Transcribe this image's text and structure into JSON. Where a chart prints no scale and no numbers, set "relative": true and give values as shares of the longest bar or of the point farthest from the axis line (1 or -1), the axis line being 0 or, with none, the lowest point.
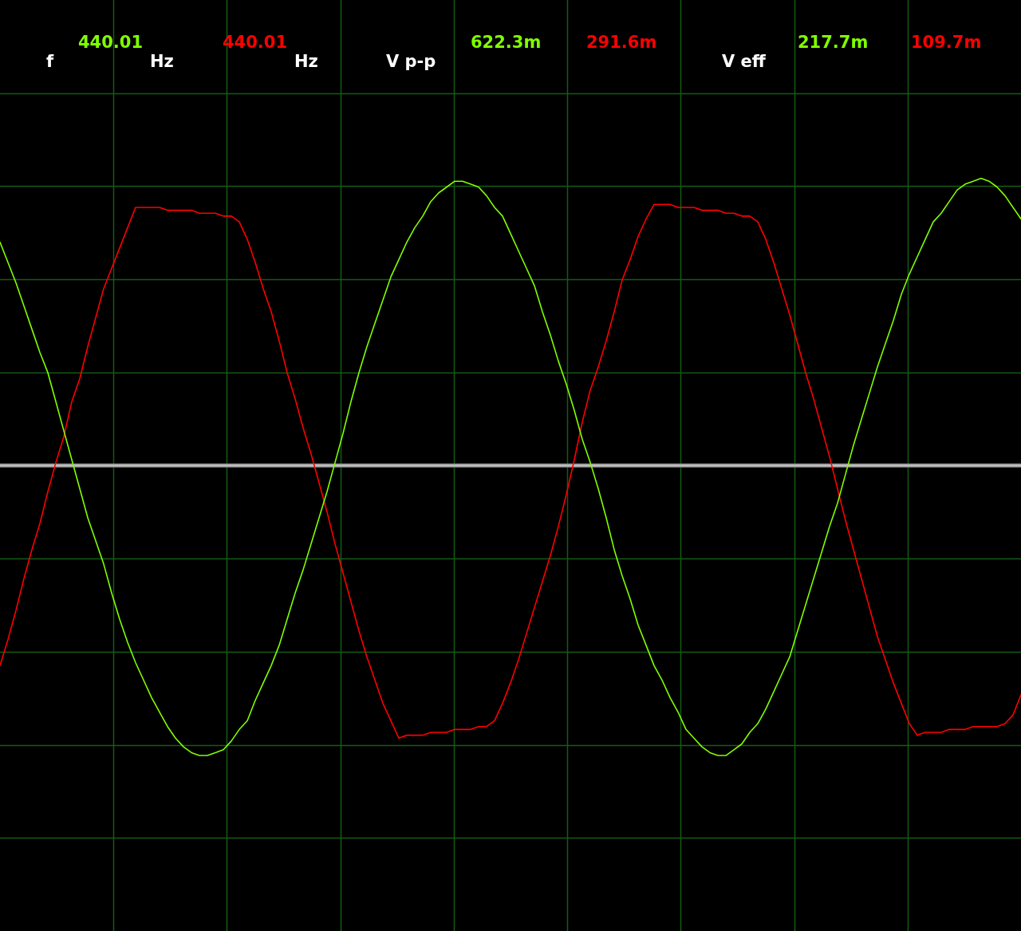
{
  "chart_data": {
    "type": "line",
    "relative": true,
    "categories": [
      null,
      null,
      null,
      null,
      null,
      null,
      null,
      null,
      null,
      null,
      null,
      null,
      null,
      null,
      null,
      null,
      null,
      null,
      null,
      null,
      null,
      null,
      null,
      null,
      null,
      null,
      null,
      null,
      null,
      null,
      null,
      null,
      null,
      null,
      null,
      null,
      null,
      null,
      null,
      null,
      null,
      null,
      null,
      null,
      null,
      null,
      null,
      null,
      null,
      null,
      null,
      null,
      null,
      null,
      null,
      null,
      null,
      null,
      null,
      null,
      null,
      null,
      null,
      null,
      null,
      null,
      null,
      null,
      null,
      null,
      null,
      null,
      null,
      null,
      null,
      null,
      null,
      null,
      null,
      null,
      null,
      null,
      null,
      null,
      null,
      null,
      null,
      null,
      null,
      null,
      null,
      null,
      null,
      null,
      null,
      null,
      null,
      null,
      null,
      null,
      null,
      null,
      null,
      null,
      null,
      null,
      null,
      null,
      null,
      null,
      null,
      null,
      null,
      null,
      null,
      null,
      null,
      null,
      null,
      null,
      null,
      null,
      null,
      null,
      null,
      null,
      null,
      null,
      null
    ],
    "series": [
      {
        "color": "#80ff00",
        "values": [
          0.77,
          0.7,
          0.63,
          0.55,
          0.47,
          0.39,
          0.32,
          0.22,
          0.12,
          0.02,
          -0.08,
          -0.18,
          -0.26,
          -0.34,
          -0.44,
          -0.53,
          -0.61,
          -0.68,
          -0.74,
          -0.8,
          -0.85,
          -0.9,
          -0.94,
          -0.97,
          -0.99,
          -1.0,
          -1.0,
          -0.99,
          -0.98,
          -0.95,
          -0.91,
          -0.88,
          -0.81,
          -0.75,
          -0.69,
          -0.62,
          -0.53,
          -0.44,
          -0.36,
          -0.27,
          -0.18,
          -0.09,
          0.01,
          0.11,
          0.22,
          0.32,
          0.41,
          0.49,
          0.57,
          0.65,
          0.71,
          0.77,
          0.82,
          0.86,
          0.91,
          0.94,
          0.96,
          0.98,
          0.98,
          0.97,
          0.96,
          0.93,
          0.89,
          0.86,
          0.8,
          0.74,
          0.68,
          0.62,
          0.53,
          0.45,
          0.36,
          0.28,
          0.19,
          0.09,
          0.01,
          -0.08,
          -0.18,
          -0.29,
          -0.38,
          -0.46,
          -0.55,
          -0.62,
          -0.69,
          -0.74,
          -0.8,
          -0.85,
          -0.91,
          -0.94,
          -0.97,
          -0.99,
          -1.0,
          -1.0,
          -0.98,
          -0.96,
          -0.92,
          -0.89,
          -0.84,
          -0.78,
          -0.72,
          -0.66,
          -0.57,
          -0.48,
          -0.39,
          -0.3,
          -0.21,
          -0.13,
          -0.03,
          0.07,
          0.16,
          0.25,
          0.34,
          0.42,
          0.5,
          0.59,
          0.66,
          0.72,
          0.78,
          0.84,
          0.87,
          0.91,
          0.95,
          0.97,
          0.98,
          0.99,
          0.98,
          0.96,
          0.93,
          0.89,
          0.85
        ]
      },
      {
        "color": "#ff0000",
        "values": [
          -0.69,
          -0.6,
          -0.5,
          -0.39,
          -0.29,
          -0.2,
          -0.09,
          0.01,
          0.1,
          0.22,
          0.3,
          0.41,
          0.51,
          0.61,
          0.68,
          0.75,
          0.82,
          0.89,
          0.89,
          0.89,
          0.89,
          0.88,
          0.88,
          0.88,
          0.88,
          0.87,
          0.87,
          0.87,
          0.86,
          0.86,
          0.84,
          0.78,
          0.7,
          0.61,
          0.53,
          0.43,
          0.32,
          0.23,
          0.13,
          0.04,
          -0.06,
          -0.16,
          -0.27,
          -0.37,
          -0.47,
          -0.57,
          -0.66,
          -0.74,
          -0.82,
          -0.88,
          -0.94,
          -0.93,
          -0.93,
          -0.93,
          -0.92,
          -0.92,
          -0.92,
          -0.91,
          -0.91,
          -0.91,
          -0.9,
          -0.9,
          -0.88,
          -0.82,
          -0.75,
          -0.67,
          -0.58,
          -0.49,
          -0.4,
          -0.31,
          -0.21,
          -0.1,
          0.02,
          0.15,
          0.26,
          0.34,
          0.43,
          0.53,
          0.64,
          0.71,
          0.79,
          0.85,
          0.9,
          0.9,
          0.9,
          0.89,
          0.89,
          0.89,
          0.88,
          0.88,
          0.88,
          0.87,
          0.87,
          0.86,
          0.86,
          0.84,
          0.78,
          0.7,
          0.61,
          0.52,
          0.42,
          0.32,
          0.23,
          0.13,
          0.03,
          -0.08,
          -0.19,
          -0.29,
          -0.39,
          -0.49,
          -0.59,
          -0.67,
          -0.75,
          -0.82,
          -0.89,
          -0.93,
          -0.92,
          -0.92,
          -0.92,
          -0.91,
          -0.91,
          -0.91,
          -0.9,
          -0.9,
          -0.9,
          -0.9,
          -0.89,
          -0.86,
          -0.79
        ]
      }
    ],
    "grid": true,
    "legend": false,
    "tick_labels": false,
    "marker": "none",
    "line_style": "solid",
    "annotations": [
      "f",
      "440.01",
      "Hz",
      "440.01",
      "Hz",
      "V p-p",
      "622.3m",
      "291.6m",
      "V eff",
      "217.7m",
      "109.7m"
    ]
  }
}
